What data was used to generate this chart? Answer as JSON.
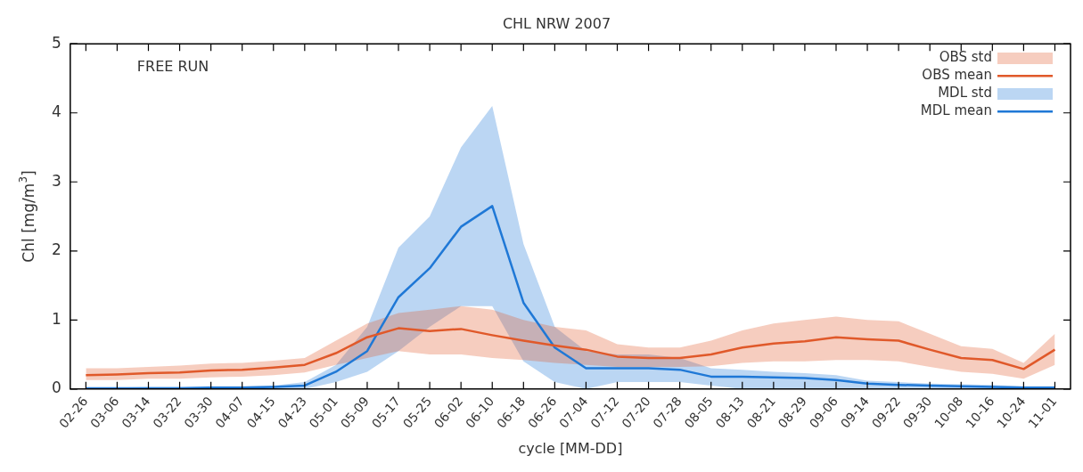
{
  "chart_data": {
    "type": "line",
    "title": "CHL NRW 2007",
    "xlabel": "cycle [MM-DD]",
    "ylabel": "Chl [mg/m$^{3}$]",
    "annotations": [
      "FREE RUN",
      "OBS std",
      "MDL std"
    ],
    "categories": [
      "02-26",
      "03-06",
      "03-14",
      "03-22",
      "03-30",
      "04-07",
      "04-15",
      "04-23",
      "05-01",
      "05-09",
      "05-17",
      "05-25",
      "06-02",
      "06-10",
      "06-18",
      "06-26",
      "07-04",
      "07-12",
      "07-20",
      "07-28",
      "08-05",
      "08-13",
      "08-21",
      "08-29",
      "09-06",
      "09-14",
      "09-22",
      "09-30",
      "10-08",
      "10-16",
      "10-24",
      "11-01"
    ],
    "ylim": [
      0,
      5
    ],
    "yticks": [
      0,
      1,
      2,
      3,
      4,
      5
    ],
    "grid": false,
    "legend": "top right",
    "series": [
      {
        "name": "OBS mean",
        "color": "#e0592a",
        "values": [
          0.2,
          0.21,
          0.23,
          0.24,
          0.27,
          0.28,
          0.31,
          0.35,
          0.52,
          0.75,
          0.88,
          0.84,
          0.87,
          0.78,
          0.7,
          0.63,
          0.57,
          0.47,
          0.45,
          0.45,
          0.5,
          0.6,
          0.66,
          0.69,
          0.75,
          0.72,
          0.7,
          0.57,
          0.45,
          0.42,
          0.29,
          0.57
        ],
        "lower": [
          0.13,
          0.13,
          0.15,
          0.15,
          0.17,
          0.18,
          0.2,
          0.24,
          0.35,
          0.45,
          0.55,
          0.5,
          0.5,
          0.45,
          0.42,
          0.38,
          0.35,
          0.32,
          0.32,
          0.32,
          0.33,
          0.38,
          0.4,
          0.4,
          0.42,
          0.42,
          0.4,
          0.32,
          0.25,
          0.22,
          0.15,
          0.35
        ],
        "upper": [
          0.3,
          0.3,
          0.32,
          0.34,
          0.37,
          0.38,
          0.41,
          0.45,
          0.7,
          0.95,
          1.1,
          1.15,
          1.2,
          1.15,
          1.0,
          0.9,
          0.85,
          0.65,
          0.6,
          0.6,
          0.7,
          0.85,
          0.95,
          1.0,
          1.05,
          1.0,
          0.98,
          0.8,
          0.62,
          0.58,
          0.38,
          0.8
        ]
      },
      {
        "name": "MDL mean",
        "color": "#1f78d6",
        "values": [
          0.01,
          0.01,
          0.01,
          0.01,
          0.02,
          0.02,
          0.03,
          0.05,
          0.25,
          0.55,
          1.33,
          1.75,
          2.35,
          2.65,
          1.25,
          0.6,
          0.3,
          0.3,
          0.3,
          0.28,
          0.18,
          0.18,
          0.17,
          0.16,
          0.13,
          0.08,
          0.06,
          0.05,
          0.04,
          0.03,
          0.02,
          0.02
        ],
        "lower": [
          0,
          0,
          0,
          0,
          0,
          0,
          0,
          0,
          0.1,
          0.25,
          0.55,
          0.9,
          1.2,
          1.2,
          0.4,
          0.1,
          0,
          0.1,
          0.1,
          0.1,
          0.05,
          0,
          0,
          0,
          0,
          0,
          0,
          0,
          0,
          0,
          0,
          0
        ],
        "upper": [
          0.02,
          0.02,
          0.03,
          0.03,
          0.04,
          0.04,
          0.05,
          0.1,
          0.35,
          0.9,
          2.05,
          2.5,
          3.5,
          4.1,
          2.1,
          0.9,
          0.55,
          0.5,
          0.5,
          0.45,
          0.3,
          0.28,
          0.25,
          0.23,
          0.2,
          0.12,
          0.1,
          0.08,
          0.07,
          0.06,
          0.04,
          0.04
        ]
      }
    ]
  }
}
